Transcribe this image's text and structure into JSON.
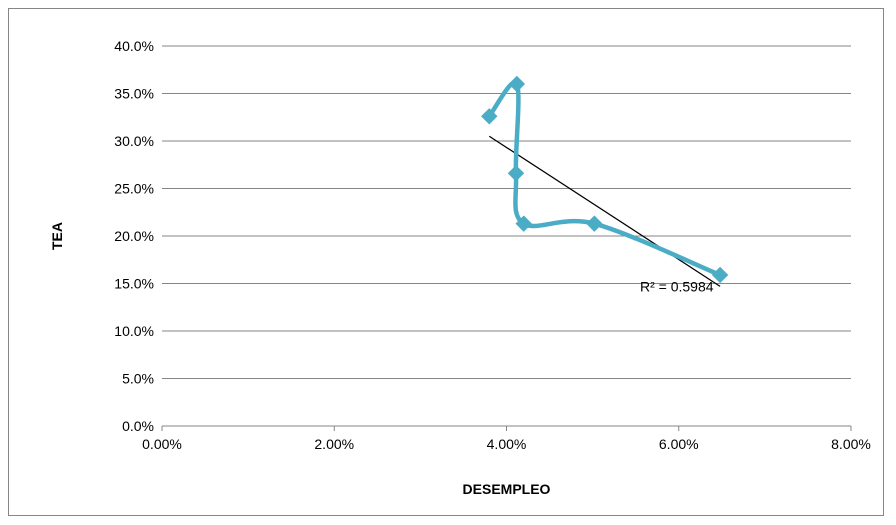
{
  "chart_data": {
    "type": "scatter",
    "title": "",
    "xlabel": "DESEMPLEO",
    "ylabel": "TEA",
    "xlim": [
      0,
      0.08
    ],
    "ylim": [
      0,
      0.4
    ],
    "x_ticks": [
      0,
      0.02,
      0.04,
      0.06,
      0.08
    ],
    "x_tick_labels": [
      "0.00%",
      "2.00%",
      "4.00%",
      "6.00%",
      "8.00%"
    ],
    "y_ticks": [
      0,
      0.05,
      0.1,
      0.15,
      0.2,
      0.25,
      0.3,
      0.35,
      0.4
    ],
    "y_tick_labels": [
      "0.0%",
      "5.0%",
      "10.0%",
      "15.0%",
      "20.0%",
      "25.0%",
      "30.0%",
      "35.0%",
      "40.0%"
    ],
    "grid": true,
    "legend": "none",
    "series": [
      {
        "color": "#4BACC6",
        "marker": "diamond",
        "smooth": true,
        "points": [
          {
            "x": 0.038,
            "y": 0.326
          },
          {
            "x": 0.0412,
            "y": 0.36
          },
          {
            "x": 0.0411,
            "y": 0.266
          },
          {
            "x": 0.042,
            "y": 0.213
          },
          {
            "x": 0.0502,
            "y": 0.213
          },
          {
            "x": 0.0648,
            "y": 0.159
          }
        ]
      }
    ],
    "trendline": {
      "type": "linear",
      "color": "#000000",
      "x_start": 0.038,
      "y_start": 0.305,
      "x_end": 0.0648,
      "y_end": 0.147,
      "label": "R² = 0.5984",
      "label_x": 0.0555,
      "label_y": 0.147
    }
  }
}
